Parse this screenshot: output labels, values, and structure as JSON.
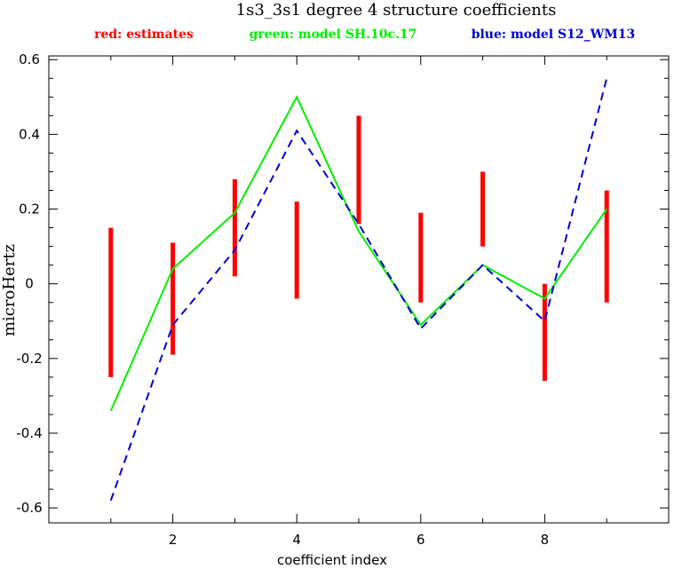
{
  "chart_data": {
    "type": "line",
    "title": "1s3_3s1 degree 4 structure coefficients",
    "legend": [
      {
        "label": "red: estimates",
        "color": "#ff0000"
      },
      {
        "label": "green: model SH.10c.17",
        "color": "#00ee00"
      },
      {
        "label": "blue: model S12_WM13",
        "color": "#0000cc"
      }
    ],
    "xlabel": "coefficient index",
    "ylabel": "microHertz",
    "xlim": [
      0,
      10
    ],
    "ylim": [
      -0.64,
      0.61
    ],
    "x_ticks": [
      2,
      4,
      6,
      8
    ],
    "x_tick_labels": [
      "2",
      "4",
      "6",
      "8"
    ],
    "y_ticks": [
      -0.6,
      -0.4,
      -0.2,
      0,
      0.2,
      0.4,
      0.6
    ],
    "y_tick_labels": [
      "-0.6",
      "-0.4",
      "-0.2",
      "0",
      "0.2",
      "0.4",
      "0.6"
    ],
    "colors": {
      "estimates": "#ff0000",
      "green_model": "#00ee00",
      "blue_model": "#0000cc"
    },
    "estimates": [
      {
        "x": 1,
        "low": -0.25,
        "high": 0.15
      },
      {
        "x": 2,
        "low": -0.19,
        "high": 0.11
      },
      {
        "x": 3,
        "low": 0.02,
        "high": 0.28
      },
      {
        "x": 4,
        "low": -0.04,
        "high": 0.22
      },
      {
        "x": 5,
        "low": 0.16,
        "high": 0.45
      },
      {
        "x": 6,
        "low": -0.05,
        "high": 0.19
      },
      {
        "x": 7,
        "low": 0.1,
        "high": 0.3
      },
      {
        "x": 8,
        "low": -0.26,
        "high": 0.0
      },
      {
        "x": 9,
        "low": -0.05,
        "high": 0.25
      }
    ],
    "series": [
      {
        "style": "solid",
        "x": [
          1,
          2,
          3,
          4,
          5,
          6,
          7,
          8,
          9
        ],
        "values": [
          -0.34,
          0.04,
          0.19,
          0.5,
          0.14,
          -0.11,
          0.05,
          -0.04,
          0.2
        ]
      },
      {
        "style": "dashed",
        "x": [
          1,
          2,
          3,
          4,
          5,
          6,
          7,
          8,
          9
        ],
        "values": [
          -0.58,
          -0.11,
          0.09,
          0.41,
          0.16,
          -0.12,
          0.05,
          -0.1,
          0.55
        ]
      }
    ]
  }
}
